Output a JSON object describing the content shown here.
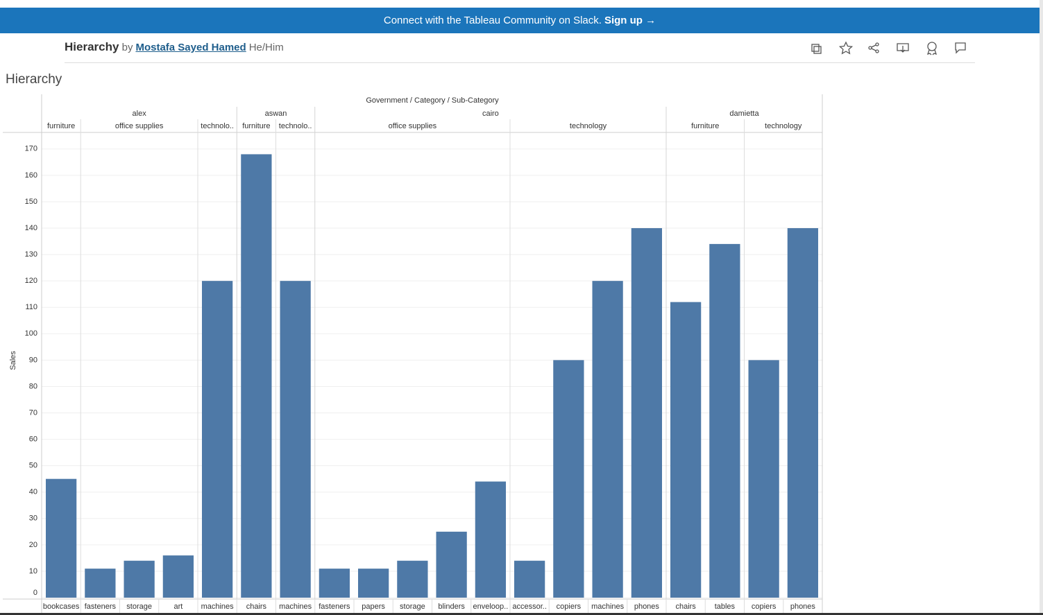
{
  "banner": {
    "text": "Connect with the Tableau Community on Slack.",
    "action": "Sign up →"
  },
  "header": {
    "title": "Hierarchy",
    "by": "by",
    "author": "Mostafa Sayed Hamed",
    "pronouns": "He/Him"
  },
  "chart_data": {
    "type": "bar",
    "title": "Hierarchy",
    "header_title": "Government / Category / Sub-Category",
    "y_label": "Sales",
    "color": "#4e79a7",
    "ylim": [
      0,
      176
    ],
    "yticks": [
      0,
      10,
      20,
      30,
      40,
      50,
      60,
      70,
      80,
      90,
      100,
      110,
      120,
      130,
      140,
      150,
      160,
      170
    ],
    "grid": true,
    "groups": [
      {
        "label": "alex",
        "categories": [
          {
            "label": "furniture",
            "subcategories": [
              "bookcases"
            ],
            "values": [
              45
            ]
          },
          {
            "label": "office supplies",
            "subcategories": [
              "fasteners",
              "storage",
              "art"
            ],
            "values": [
              11,
              14,
              16
            ]
          },
          {
            "label": "technolo..",
            "subcategories": [
              "machines"
            ],
            "values": [
              120
            ]
          }
        ]
      },
      {
        "label": "aswan",
        "categories": [
          {
            "label": "furniture",
            "subcategories": [
              "chairs"
            ],
            "values": [
              168
            ]
          },
          {
            "label": "technolo..",
            "subcategories": [
              "machines"
            ],
            "values": [
              120
            ]
          }
        ]
      },
      {
        "label": "cairo",
        "categories": [
          {
            "label": "office supplies",
            "subcategories": [
              "fasteners",
              "papers",
              "storage",
              "blinders",
              "enveloop.."
            ],
            "values": [
              11,
              11,
              14,
              25,
              44
            ]
          },
          {
            "label": "technology",
            "subcategories": [
              "accessor..",
              "copiers",
              "machines",
              "phones"
            ],
            "values": [
              14,
              90,
              120,
              140
            ]
          }
        ]
      },
      {
        "label": "damietta",
        "categories": [
          {
            "label": "furniture",
            "subcategories": [
              "chairs",
              "tables"
            ],
            "values": [
              112,
              134
            ]
          },
          {
            "label": "technology",
            "subcategories": [
              "copiers",
              "phones"
            ],
            "values": [
              90,
              140
            ]
          }
        ]
      }
    ]
  }
}
